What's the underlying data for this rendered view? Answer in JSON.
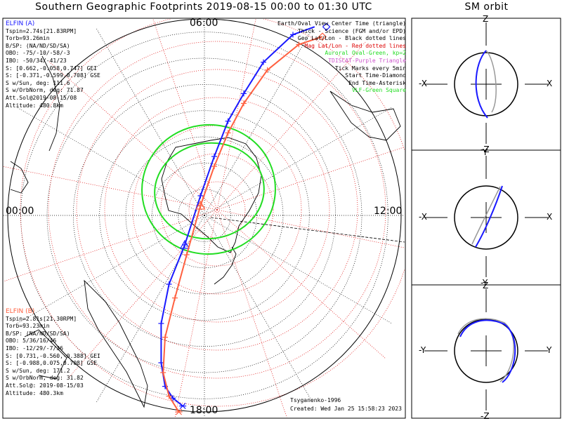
{
  "main_title": "Southern Geographic Footprints 2019-08-15 00:00 to 01:30 UTC",
  "sm_title": "SM orbit",
  "colors": {
    "elfin_a": "#1a1aff",
    "elfin_b": "#ff6040",
    "geo_grid": "#000000",
    "mag_grid": "#dd0000",
    "aurora": "#22dd22",
    "orbit_ref": "#999999"
  },
  "elfin_a": {
    "name": "ELFIN (A)",
    "lines": [
      "Tspin=2.74s[21.83RPM]",
      "Torb=93.26min",
      "B/SP: (NA/ND/SD/SA)",
      "OBO: -75/-10/-58/-3",
      "IBO: -50/34/-41/23",
      "S: [0.662,-0.058,0.747] GEI",
      "S: [-0.371,-0.599,0.708] GSE",
      "S w/Sun, deg: 111.6",
      "S w/OrbNorm, deg: 71.87",
      "Att.Sol@2019-08-15/08",
      "Altitude: 480.8km"
    ]
  },
  "elfin_b": {
    "name": "ELFIN (B)",
    "lines": [
      "Tspin=2.81s[21.30RPM]",
      "Torb=93.23min",
      "B/SP: (NA/ND/SD/SA)",
      "OBO: 5/36/16/46",
      "IBO: -12/29/-7/36",
      "S: [0.731,-0.560,-0.388] GEI",
      "S: [-0.988,0.075,0.708] GSE",
      "S w/Sun, deg: 171.2",
      "S w/OrbNorm, deg: 31.82",
      "Att.Sol@: 2019-08-15/03",
      "Altitude: 480.3km"
    ]
  },
  "legend": [
    {
      "text": "Earth/Oval View Center Time (triangle)",
      "color": "#000000"
    },
    {
      "text": "Thick - Science (FGM and/or EPD)",
      "color": "#000000"
    },
    {
      "text": "Geo Lat/Lon - Black dotted lines",
      "color": "#000000"
    },
    {
      "text": "Mag Lat/Lon - Red dotted lines",
      "color": "#dd0000"
    },
    {
      "text": "Auroral Oval-Green, kp=2",
      "color": "#22dd22"
    },
    {
      "text": "TDISCAT-Purple Triangle",
      "color": "#cc55cc"
    },
    {
      "text": "Tick Marks every 5min",
      "color": "#000000"
    },
    {
      "text": "Start Time-Diamond",
      "color": "#000000"
    },
    {
      "text": "End Time-Asterisk",
      "color": "#000000"
    },
    {
      "text": "VLF-Green Square",
      "color": "#22dd22"
    }
  ],
  "time_labels": {
    "top": "06:00",
    "bottom": "18:00",
    "left": "00:00",
    "right": "12:00"
  },
  "footer": {
    "credit": "Tsyganenko-1996",
    "created": "Created: Wed Jan 25 15:58:23 2023"
  },
  "sm_orbit_panels": [
    {
      "top": "Z",
      "bottom": "-Z",
      "left": "-X",
      "right": "X"
    },
    {
      "top": "Y",
      "bottom": "-Y",
      "left": "-X",
      "right": "X"
    },
    {
      "top": "Z",
      "bottom": "-Z",
      "left": "-Y",
      "right": "Y"
    }
  ],
  "chart_data": {
    "type": "polar map",
    "projection": "southern hemisphere",
    "latitude_circles_deg": [
      -80,
      -70,
      -60,
      -50,
      -40,
      -30,
      -20
    ],
    "longitude_spokes_deg": [
      0,
      30,
      60,
      90,
      120,
      150,
      180,
      210,
      240,
      270,
      300,
      330
    ],
    "footprints": [
      {
        "name": "ELFIN (A)",
        "color": "#1a1aff",
        "start": [
          0.62,
          0.96
        ],
        "end": [
          -0.11,
          -0.97
        ],
        "points": [
          [
            0.56,
            0.96
          ],
          [
            0.45,
            0.92
          ],
          [
            0.3,
            0.78
          ],
          [
            0.2,
            0.62
          ],
          [
            0.12,
            0.48
          ],
          [
            0.05,
            0.3
          ],
          [
            -0.02,
            0.1
          ],
          [
            -0.1,
            -0.15
          ],
          [
            -0.18,
            -0.35
          ],
          [
            -0.22,
            -0.55
          ],
          [
            -0.22,
            -0.75
          ],
          [
            -0.2,
            -0.87
          ],
          [
            -0.16,
            -0.93
          ],
          [
            -0.11,
            -0.97
          ]
        ]
      },
      {
        "name": "ELFIN (B)",
        "color": "#ff6040",
        "start": [
          0.6,
          0.91
        ],
        "end": [
          -0.13,
          -1.0
        ],
        "points": [
          [
            0.6,
            0.91
          ],
          [
            0.48,
            0.87
          ],
          [
            0.32,
            0.74
          ],
          [
            0.2,
            0.57
          ],
          [
            0.12,
            0.42
          ],
          [
            0.05,
            0.25
          ],
          [
            -0.02,
            0.05
          ],
          [
            -0.09,
            -0.2
          ],
          [
            -0.15,
            -0.42
          ],
          [
            -0.2,
            -0.62
          ],
          [
            -0.21,
            -0.8
          ],
          [
            -0.18,
            -0.92
          ],
          [
            -0.13,
            -1.0
          ]
        ]
      }
    ],
    "auroral_oval": {
      "kp": 2
    }
  }
}
